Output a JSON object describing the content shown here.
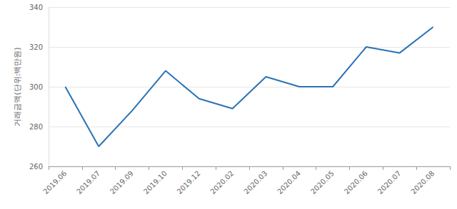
{
  "chart_data": {
    "type": "line",
    "y_label": "거래금액(단위:백만원)",
    "categories": [
      "2019.06",
      "2019.07",
      "2019.09",
      "2019.10",
      "2019.12",
      "2020.02",
      "2020.03",
      "2020.04",
      "2020.05",
      "2020.06",
      "2020.07",
      "2020.08"
    ],
    "values": [
      300,
      270,
      288,
      308,
      294,
      289,
      305,
      300,
      300,
      320,
      317,
      330
    ],
    "color": "#2a72b5",
    "ylim": [
      260,
      340
    ],
    "yticks": [
      260,
      280,
      300,
      320,
      340
    ],
    "grid": true
  }
}
